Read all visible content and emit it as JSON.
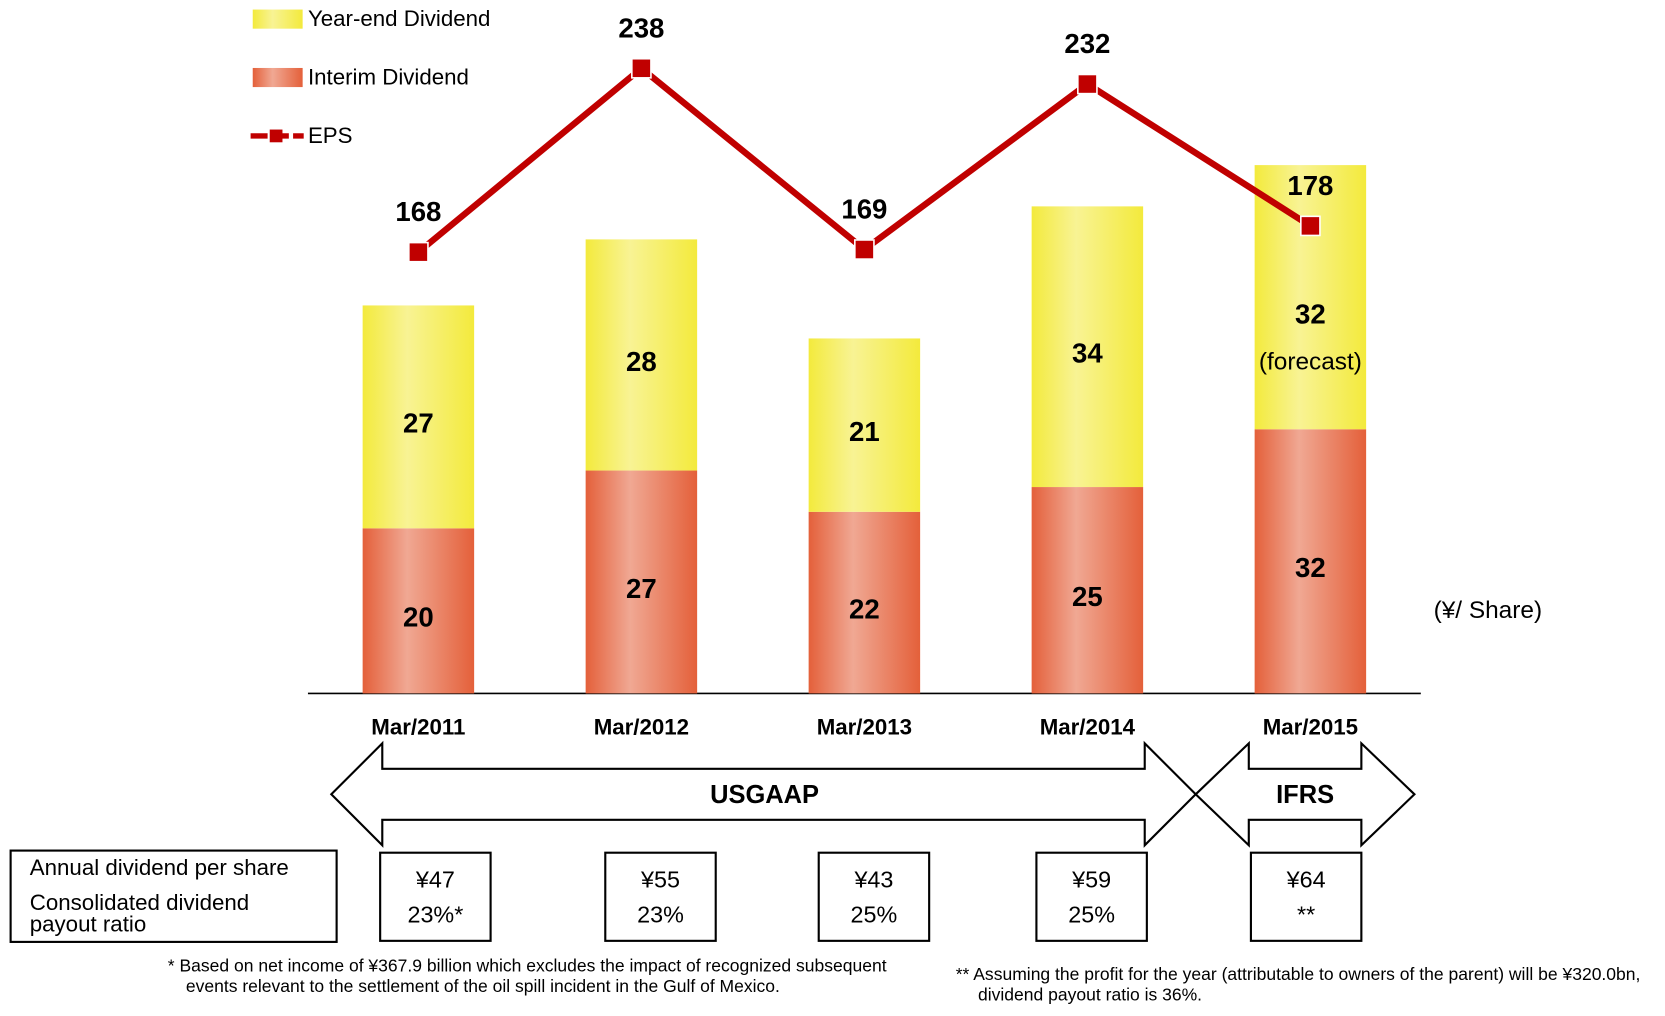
{
  "chart_data": {
    "type": "bar",
    "stacked": true,
    "categories": [
      "Mar/2011",
      "Mar/2012",
      "Mar/2013",
      "Mar/2014",
      "Mar/2015"
    ],
    "series": [
      {
        "name": "Interim Dividend",
        "color": "#e4603a",
        "values": [
          20,
          27,
          22,
          25,
          32
        ]
      },
      {
        "name": "Year-end Dividend",
        "color": "#f3ea3c",
        "values": [
          27,
          28,
          21,
          34,
          32
        ],
        "notes": [
          null,
          null,
          null,
          null,
          "(forecast)"
        ]
      },
      {
        "name": "EPS",
        "type": "line",
        "axis": "y2",
        "color": "#c00000",
        "values": [
          168,
          238,
          169,
          232,
          178
        ]
      }
    ],
    "ylim": [
      0,
      84
    ],
    "y2lim": [
      0,
      264
    ],
    "unit_label": "(¥/ Share)",
    "accounting_standards": [
      "USGAAP",
      "IFRS"
    ],
    "dividend_table": {
      "row_labels": [
        "Annual dividend per share",
        "Consolidated dividend payout ratio"
      ],
      "annual_dividend": [
        "¥47",
        "¥55",
        "¥43",
        "¥59",
        "¥64"
      ],
      "payout_ratio": [
        "23%*",
        "23%",
        "25%",
        "25%",
        "**"
      ]
    },
    "footnotes": [
      "* Based on net income of ¥367.9 billion which excludes the impact of recognized subsequent events relevant to the settlement of the oil spill incident in the Gulf of Mexico.",
      "** Assuming the profit for the year (attributable to owners of the parent) will be ¥320.0bn, dividend payout ratio is 36%."
    ]
  }
}
